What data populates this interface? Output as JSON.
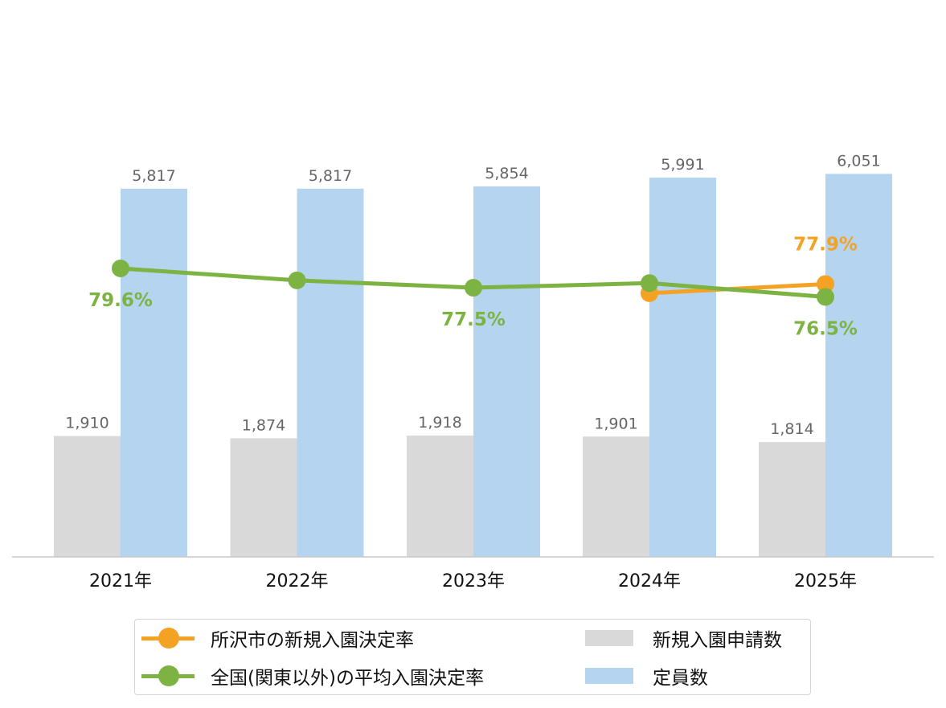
{
  "chart_data": {
    "type": "bar+line",
    "categories": [
      "2021年",
      "2022年",
      "2023年",
      "2024年",
      "2025年"
    ],
    "bar_series": [
      {
        "name": "新規入園申請数",
        "color": "#d9d9d9",
        "values": [
          1910,
          1874,
          1918,
          1901,
          1814
        ],
        "labels": [
          "1,910",
          "1,874",
          "1,918",
          "1,901",
          "1,814"
        ]
      },
      {
        "name": "定員数",
        "color": "#b4d4ef",
        "values": [
          5817,
          5817,
          5854,
          5991,
          6051
        ],
        "labels": [
          "5,817",
          "5,817",
          "5,854",
          "5,991",
          "6,051"
        ]
      }
    ],
    "line_series": [
      {
        "name": "所沢市の新規入園決定率",
        "color": "#f4a224",
        "values": [
          null,
          null,
          null,
          76.9,
          77.9
        ],
        "labels": [
          null,
          null,
          null,
          null,
          "77.9%"
        ]
      },
      {
        "name": "全国(関東以外)の平均入園決定率",
        "color": "#7cb342",
        "values": [
          79.6,
          78.3,
          77.5,
          78.0,
          76.5
        ],
        "labels": [
          "79.6%",
          null,
          "77.5%",
          null,
          "76.5%"
        ]
      }
    ],
    "bar_axis": {
      "ylim": [
        0,
        8500
      ],
      "visible": false
    },
    "line_axis": {
      "ylim": [
        52.4,
        83.5
      ],
      "visible": false
    },
    "grid": false,
    "legend_position": "bottom"
  },
  "legend": {
    "items": [
      {
        "label": "所沢市の新規入園決定率",
        "kind": "line",
        "color": "#f4a224"
      },
      {
        "label": "全国(関東以外)の平均入園決定率",
        "kind": "line",
        "color": "#7cb342"
      },
      {
        "label": "新規入園申請数",
        "kind": "box",
        "color": "#d9d9d9"
      },
      {
        "label": "定員数",
        "kind": "box",
        "color": "#b4d4ef"
      }
    ]
  }
}
